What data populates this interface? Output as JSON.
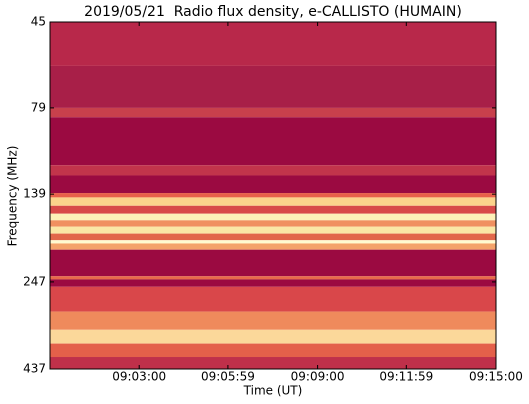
{
  "chart_data": {
    "type": "spectrogram",
    "title": "2019/05/21  Radio flux density, e-CALLISTO (HUMAIN)",
    "x_label": "Time (UT)",
    "y_label": "Frequency (MHz)",
    "xlim": [
      "09:00:00",
      "09:15:00"
    ],
    "xticks": [
      "09:03:00",
      "09:05:59",
      "09:09:00",
      "09:11:59",
      "09:15:00"
    ],
    "ylim": [
      45,
      437
    ],
    "yticks": [
      45,
      79,
      139,
      247,
      437
    ],
    "ylog": true,
    "yinverted": true,
    "bands": [
      {
        "from": 45,
        "to": 60,
        "color": "#b8284a"
      },
      {
        "from": 60,
        "to": 79,
        "color": "#a81f48"
      },
      {
        "from": 79,
        "to": 84,
        "color": "#c8404c"
      },
      {
        "from": 84,
        "to": 115,
        "color": "#9b0a41"
      },
      {
        "from": 115,
        "to": 123,
        "color": "#c2344b"
      },
      {
        "from": 123,
        "to": 138,
        "color": "#9b0a41"
      },
      {
        "from": 138,
        "to": 142,
        "color": "#e8604a"
      },
      {
        "from": 142,
        "to": 150,
        "color": "#fbd38b"
      },
      {
        "from": 150,
        "to": 158,
        "color": "#d84a48"
      },
      {
        "from": 158,
        "to": 165,
        "color": "#fdf1b8"
      },
      {
        "from": 165,
        "to": 172,
        "color": "#f09060"
      },
      {
        "from": 172,
        "to": 180,
        "color": "#fae7a5"
      },
      {
        "from": 180,
        "to": 188,
        "color": "#e2674a"
      },
      {
        "from": 188,
        "to": 192,
        "color": "#fffbd0"
      },
      {
        "from": 192,
        "to": 200,
        "color": "#f4a36a"
      },
      {
        "from": 200,
        "to": 238,
        "color": "#9b0a41"
      },
      {
        "from": 238,
        "to": 243,
        "color": "#e86a4a"
      },
      {
        "from": 243,
        "to": 255,
        "color": "#9b0a41"
      },
      {
        "from": 255,
        "to": 300,
        "color": "#d9474a"
      },
      {
        "from": 300,
        "to": 338,
        "color": "#ef8a5c"
      },
      {
        "from": 338,
        "to": 370,
        "color": "#fbd89a"
      },
      {
        "from": 370,
        "to": 404,
        "color": "#e4604a"
      },
      {
        "from": 404,
        "to": 437,
        "color": "#c0304a"
      }
    ]
  }
}
